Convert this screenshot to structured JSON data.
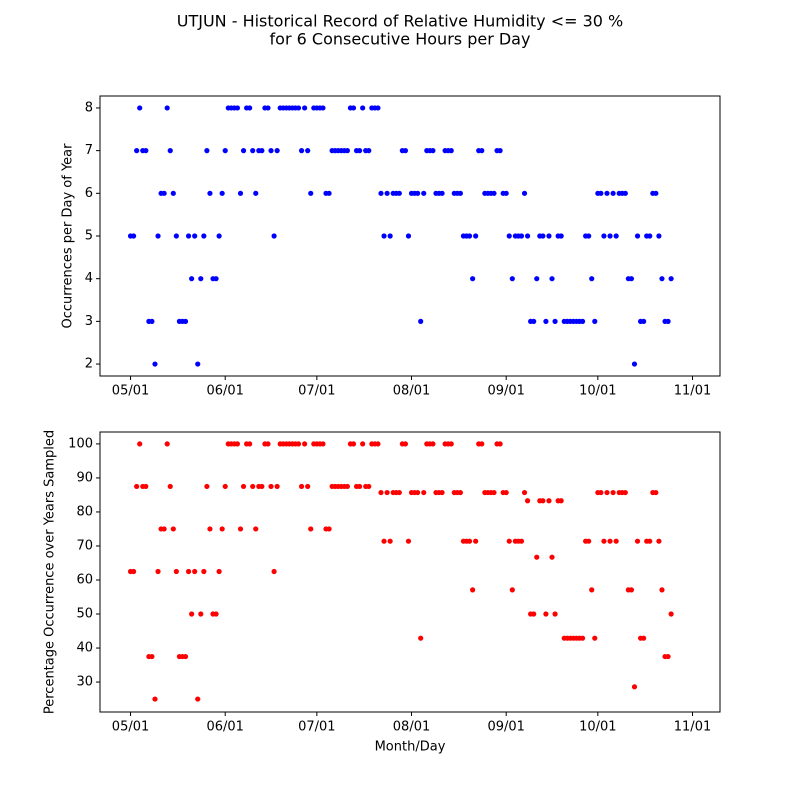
{
  "title": [
    "UTJUN - Historical Record of Relative Humidity <= 30 %",
    "for 6 Consecutive Hours per Day"
  ],
  "chart_data": [
    {
      "type": "scatter",
      "ylabel": "Occurrences per Day of Year",
      "color": "#0000ff",
      "x": [
        "05/01",
        "05/02",
        "05/03",
        "05/04",
        "05/05",
        "05/06",
        "05/07",
        "05/08",
        "05/09",
        "05/10",
        "05/11",
        "05/12",
        "05/13",
        "05/14",
        "05/15",
        "05/16",
        "05/17",
        "05/18",
        "05/19",
        "05/20",
        "05/21",
        "05/22",
        "05/23",
        "05/24",
        "05/25",
        "05/26",
        "05/27",
        "05/28",
        "05/29",
        "05/30",
        "05/31",
        "06/01",
        "06/02",
        "06/03",
        "06/04",
        "06/05",
        "06/06",
        "06/07",
        "06/08",
        "06/09",
        "06/10",
        "06/11",
        "06/12",
        "06/13",
        "06/14",
        "06/15",
        "06/16",
        "06/17",
        "06/18",
        "06/19",
        "06/20",
        "06/21",
        "06/22",
        "06/23",
        "06/24",
        "06/25",
        "06/26",
        "06/27",
        "06/28",
        "06/29",
        "06/30",
        "07/01",
        "07/02",
        "07/03",
        "07/04",
        "07/05",
        "07/06",
        "07/07",
        "07/08",
        "07/09",
        "07/10",
        "07/11",
        "07/12",
        "07/13",
        "07/14",
        "07/15",
        "07/16",
        "07/17",
        "07/18",
        "07/19",
        "07/20",
        "07/21",
        "07/22",
        "07/23",
        "07/24",
        "07/25",
        "07/26",
        "07/27",
        "07/28",
        "07/29",
        "07/30",
        "07/31",
        "08/01",
        "08/02",
        "08/03",
        "08/04",
        "08/05",
        "08/06",
        "08/07",
        "08/08",
        "08/09",
        "08/10",
        "08/11",
        "08/12",
        "08/13",
        "08/14",
        "08/15",
        "08/16",
        "08/17",
        "08/18",
        "08/19",
        "08/20",
        "08/21",
        "08/22",
        "08/23",
        "08/24",
        "08/25",
        "08/26",
        "08/27",
        "08/28",
        "08/29",
        "08/30",
        "08/31",
        "09/01",
        "09/02",
        "09/03",
        "09/04",
        "09/05",
        "09/06",
        "09/07",
        "09/08",
        "09/09",
        "09/10",
        "09/11",
        "09/12",
        "09/13",
        "09/14",
        "09/15",
        "09/16",
        "09/17",
        "09/18",
        "09/19",
        "09/20",
        "09/21",
        "09/22",
        "09/23",
        "09/24",
        "09/25",
        "09/26",
        "09/27",
        "09/28",
        "09/29",
        "09/30",
        "10/01",
        "10/02",
        "10/03",
        "10/04",
        "10/05",
        "10/06",
        "10/07",
        "10/08",
        "10/09",
        "10/10",
        "10/11",
        "10/12",
        "10/13",
        "10/14",
        "10/15",
        "10/16",
        "10/17",
        "10/18",
        "10/19",
        "10/20",
        "10/21",
        "10/22",
        "10/23",
        "10/24",
        "10/25"
      ],
      "values": [
        5,
        5,
        7,
        8,
        7,
        7,
        3,
        3,
        2,
        5,
        6,
        6,
        8,
        7,
        6,
        5,
        3,
        3,
        3,
        5,
        4,
        5,
        2,
        4,
        5,
        7,
        6,
        4,
        4,
        5,
        6,
        7,
        8,
        8,
        8,
        8,
        6,
        7,
        8,
        8,
        7,
        6,
        7,
        7,
        8,
        8,
        7,
        5,
        7,
        8,
        8,
        8,
        8,
        8,
        8,
        8,
        7,
        8,
        7,
        6,
        8,
        8,
        8,
        8,
        6,
        6,
        7,
        7,
        7,
        7,
        7,
        7,
        8,
        8,
        7,
        7,
        8,
        7,
        7,
        8,
        8,
        8,
        6,
        5,
        6,
        5,
        6,
        6,
        6,
        7,
        7,
        5,
        6,
        6,
        6,
        3,
        6,
        7,
        7,
        7,
        6,
        6,
        6,
        7,
        7,
        7,
        6,
        6,
        6,
        5,
        5,
        5,
        4,
        5,
        7,
        7,
        6,
        6,
        6,
        6,
        7,
        7,
        6,
        6,
        5,
        4,
        5,
        5,
        5,
        6,
        5,
        3,
        3,
        4,
        5,
        5,
        3,
        5,
        4,
        3,
        5,
        5,
        3,
        3,
        3,
        3,
        3,
        3,
        3,
        5,
        5,
        4,
        3,
        6,
        6,
        5,
        6,
        5,
        6,
        5,
        6,
        6,
        6,
        4,
        4,
        2,
        5,
        3,
        3,
        5,
        5,
        6,
        6,
        5,
        4,
        3,
        3,
        4
      ],
      "xlim": [
        "04/21",
        "11/10"
      ],
      "xticks": [
        "05/01",
        "06/01",
        "07/01",
        "08/01",
        "09/01",
        "10/01",
        "11/01"
      ],
      "ylim": [
        1.72,
        8.28
      ],
      "yticks": [
        2,
        3,
        4,
        5,
        6,
        7,
        8
      ]
    },
    {
      "type": "scatter",
      "ylabel": "Percentage Occurrence over Years Sampled",
      "xlabel": "Month/Day",
      "color": "#ff0000",
      "x": [
        "05/01",
        "05/02",
        "05/03",
        "05/04",
        "05/05",
        "05/06",
        "05/07",
        "05/08",
        "05/09",
        "05/10",
        "05/11",
        "05/12",
        "05/13",
        "05/14",
        "05/15",
        "05/16",
        "05/17",
        "05/18",
        "05/19",
        "05/20",
        "05/21",
        "05/22",
        "05/23",
        "05/24",
        "05/25",
        "05/26",
        "05/27",
        "05/28",
        "05/29",
        "05/30",
        "05/31",
        "06/01",
        "06/02",
        "06/03",
        "06/04",
        "06/05",
        "06/06",
        "06/07",
        "06/08",
        "06/09",
        "06/10",
        "06/11",
        "06/12",
        "06/13",
        "06/14",
        "06/15",
        "06/16",
        "06/17",
        "06/18",
        "06/19",
        "06/20",
        "06/21",
        "06/22",
        "06/23",
        "06/24",
        "06/25",
        "06/26",
        "06/27",
        "06/28",
        "06/29",
        "06/30",
        "07/01",
        "07/02",
        "07/03",
        "07/04",
        "07/05",
        "07/06",
        "07/07",
        "07/08",
        "07/09",
        "07/10",
        "07/11",
        "07/12",
        "07/13",
        "07/14",
        "07/15",
        "07/16",
        "07/17",
        "07/18",
        "07/19",
        "07/20",
        "07/21",
        "07/22",
        "07/23",
        "07/24",
        "07/25",
        "07/26",
        "07/27",
        "07/28",
        "07/29",
        "07/30",
        "07/31",
        "08/01",
        "08/02",
        "08/03",
        "08/04",
        "08/05",
        "08/06",
        "08/07",
        "08/08",
        "08/09",
        "08/10",
        "08/11",
        "08/12",
        "08/13",
        "08/14",
        "08/15",
        "08/16",
        "08/17",
        "08/18",
        "08/19",
        "08/20",
        "08/21",
        "08/22",
        "08/23",
        "08/24",
        "08/25",
        "08/26",
        "08/27",
        "08/28",
        "08/29",
        "08/30",
        "08/31",
        "09/01",
        "09/02",
        "09/03",
        "09/04",
        "09/05",
        "09/06",
        "09/07",
        "09/08",
        "09/09",
        "09/10",
        "09/11",
        "09/12",
        "09/13",
        "09/14",
        "09/15",
        "09/16",
        "09/17",
        "09/18",
        "09/19",
        "09/20",
        "09/21",
        "09/22",
        "09/23",
        "09/24",
        "09/25",
        "09/26",
        "09/27",
        "09/28",
        "09/29",
        "09/30",
        "10/01",
        "10/02",
        "10/03",
        "10/04",
        "10/05",
        "10/06",
        "10/07",
        "10/08",
        "10/09",
        "10/10",
        "10/11",
        "10/12",
        "10/13",
        "10/14",
        "10/15",
        "10/16",
        "10/17",
        "10/18",
        "10/19",
        "10/20",
        "10/21",
        "10/22",
        "10/23",
        "10/24",
        "10/25"
      ],
      "values": [
        62.5,
        62.5,
        87.5,
        100,
        87.5,
        87.5,
        37.5,
        37.5,
        25,
        62.5,
        75,
        75,
        100,
        87.5,
        75,
        62.5,
        37.5,
        37.5,
        37.5,
        62.5,
        50,
        62.5,
        25,
        50,
        62.5,
        87.5,
        75,
        50,
        50,
        62.5,
        75,
        87.5,
        100,
        100,
        100,
        100,
        75,
        87.5,
        100,
        100,
        87.5,
        75,
        87.5,
        87.5,
        100,
        100,
        87.5,
        62.5,
        87.5,
        100,
        100,
        100,
        100,
        100,
        100,
        100,
        87.5,
        100,
        87.5,
        75,
        100,
        100,
        100,
        100,
        75,
        75,
        87.5,
        87.5,
        87.5,
        87.5,
        87.5,
        87.5,
        100,
        100,
        87.5,
        87.5,
        100,
        87.5,
        87.5,
        100,
        100,
        100,
        85.7,
        71.4,
        85.7,
        71.4,
        85.7,
        85.7,
        85.7,
        100,
        100,
        71.4,
        85.7,
        85.7,
        85.7,
        42.9,
        85.7,
        100,
        100,
        100,
        85.7,
        85.7,
        85.7,
        100,
        100,
        100,
        85.7,
        85.7,
        85.7,
        71.4,
        71.4,
        71.4,
        57.1,
        71.4,
        100,
        100,
        85.7,
        85.7,
        85.7,
        85.7,
        100,
        100,
        85.7,
        85.7,
        71.4,
        57.1,
        71.4,
        71.4,
        71.4,
        85.7,
        83.3,
        50,
        50,
        66.7,
        83.3,
        83.3,
        50,
        83.3,
        66.7,
        50,
        83.3,
        83.3,
        42.9,
        42.9,
        42.9,
        42.9,
        42.9,
        42.9,
        42.9,
        71.4,
        71.4,
        57.1,
        42.9,
        85.7,
        85.7,
        71.4,
        85.7,
        71.4,
        85.7,
        71.4,
        85.7,
        85.7,
        85.7,
        57.1,
        57.1,
        28.6,
        71.4,
        42.9,
        42.9,
        71.4,
        71.4,
        85.7,
        85.7,
        71.4,
        57.1,
        37.5,
        37.5,
        50
      ],
      "xlim": [
        "04/21",
        "11/10"
      ],
      "xticks": [
        "05/01",
        "06/01",
        "07/01",
        "08/01",
        "09/01",
        "10/01",
        "11/01"
      ],
      "ylim": [
        21.2,
        103.5
      ],
      "yticks": [
        30,
        40,
        50,
        60,
        70,
        80,
        90,
        100
      ]
    }
  ]
}
